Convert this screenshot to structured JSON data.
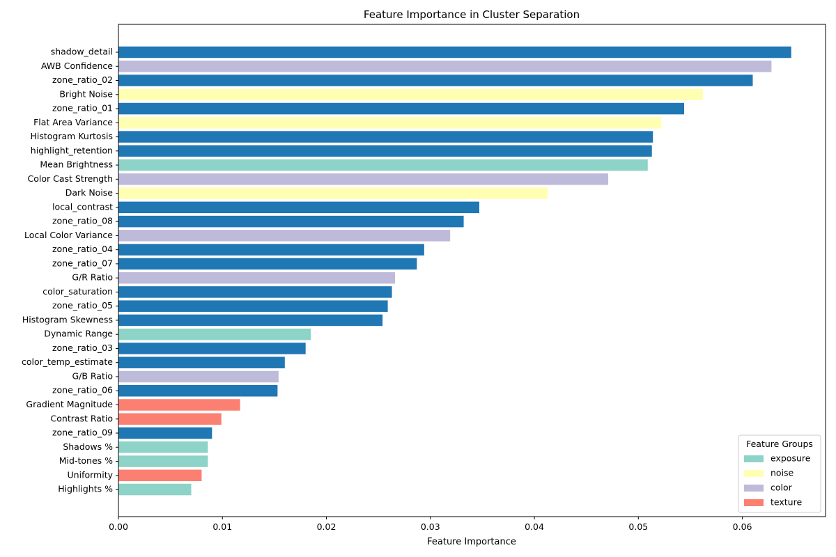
{
  "chart_data": {
    "type": "bar",
    "orientation": "horizontal",
    "title": "Feature Importance in Cluster Separation",
    "xlabel": "Feature Importance",
    "ylabel": "",
    "xlim": [
      0,
      0.068
    ],
    "xticks": [
      0.0,
      0.01,
      0.02,
      0.03,
      0.04,
      0.05,
      0.06
    ],
    "xtick_labels": [
      "0.00",
      "0.01",
      "0.02",
      "0.03",
      "0.04",
      "0.05",
      "0.06"
    ],
    "grid": false,
    "default_color": "#1f77b4",
    "legend": {
      "title": "Feature Groups",
      "placement": "lower-right",
      "items": [
        {
          "label": "exposure",
          "color": "#8dd3c7"
        },
        {
          "label": "noise",
          "color": "#ffffb3"
        },
        {
          "label": "color",
          "color": "#bebada"
        },
        {
          "label": "texture",
          "color": "#fb8072"
        }
      ]
    },
    "bars": [
      {
        "label": "shadow_detail",
        "value": 0.0647,
        "group": null
      },
      {
        "label": "AWB Confidence",
        "value": 0.0628,
        "group": "color"
      },
      {
        "label": "zone_ratio_02",
        "value": 0.061,
        "group": null
      },
      {
        "label": "Bright Noise",
        "value": 0.0562,
        "group": "noise"
      },
      {
        "label": "zone_ratio_01",
        "value": 0.0544,
        "group": null
      },
      {
        "label": "Flat Area Variance",
        "value": 0.0522,
        "group": "noise"
      },
      {
        "label": "Histogram Kurtosis",
        "value": 0.0514,
        "group": null
      },
      {
        "label": "highlight_retention",
        "value": 0.0513,
        "group": null
      },
      {
        "label": "Mean Brightness",
        "value": 0.0509,
        "group": "exposure"
      },
      {
        "label": "Color Cast Strength",
        "value": 0.0471,
        "group": "color"
      },
      {
        "label": "Dark Noise",
        "value": 0.0413,
        "group": "noise"
      },
      {
        "label": "local_contrast",
        "value": 0.0347,
        "group": null
      },
      {
        "label": "zone_ratio_08",
        "value": 0.0332,
        "group": null
      },
      {
        "label": "Local Color Variance",
        "value": 0.0319,
        "group": "color"
      },
      {
        "label": "zone_ratio_04",
        "value": 0.0294,
        "group": null
      },
      {
        "label": "zone_ratio_07",
        "value": 0.0287,
        "group": null
      },
      {
        "label": "G/R Ratio",
        "value": 0.0266,
        "group": "color"
      },
      {
        "label": "color_saturation",
        "value": 0.0263,
        "group": null
      },
      {
        "label": "zone_ratio_05",
        "value": 0.0259,
        "group": null
      },
      {
        "label": "Histogram Skewness",
        "value": 0.0254,
        "group": null
      },
      {
        "label": "Dynamic Range",
        "value": 0.0185,
        "group": "exposure"
      },
      {
        "label": "zone_ratio_03",
        "value": 0.018,
        "group": null
      },
      {
        "label": "color_temp_estimate",
        "value": 0.016,
        "group": null
      },
      {
        "label": "G/B Ratio",
        "value": 0.0154,
        "group": "color"
      },
      {
        "label": "zone_ratio_06",
        "value": 0.0153,
        "group": null
      },
      {
        "label": "Gradient Magnitude",
        "value": 0.0117,
        "group": "texture"
      },
      {
        "label": "Contrast Ratio",
        "value": 0.0099,
        "group": "texture"
      },
      {
        "label": "zone_ratio_09",
        "value": 0.009,
        "group": null
      },
      {
        "label": "Shadows %",
        "value": 0.0086,
        "group": "exposure"
      },
      {
        "label": "Mid-tones %",
        "value": 0.0086,
        "group": "exposure"
      },
      {
        "label": "Uniformity",
        "value": 0.008,
        "group": "texture"
      },
      {
        "label": "Highlights %",
        "value": 0.007,
        "group": "exposure"
      }
    ]
  }
}
